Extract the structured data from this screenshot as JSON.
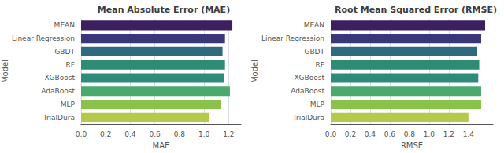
{
  "chart_data": [
    {
      "type": "bar",
      "orientation": "horizontal",
      "title": "Mean Absolute Error (MAE)",
      "categories": [
        "MEAN",
        "Linear Regression",
        "GBDT",
        "RF",
        "XGBoost",
        "AdaBoost",
        "MLP",
        "TrialDura"
      ],
      "values": [
        1.23,
        1.17,
        1.15,
        1.17,
        1.16,
        1.21,
        1.14,
        1.04
      ],
      "colors": [
        "#3b1f5e",
        "#3a3778",
        "#2e6b7e",
        "#2e8b74",
        "#2d8b7a",
        "#4aaa6e",
        "#8bc34a",
        "#b5c94a"
      ],
      "xlabel": "MAE",
      "ylabel": "Model",
      "xlim": [
        0.0,
        1.3
      ],
      "xticks": [
        {
          "value": 0.0,
          "label": "0.0"
        },
        0.2,
        0.4,
        0.6,
        0.8,
        {
          "value": 1.0,
          "label": "1.0"
        },
        1.2
      ],
      "grid": true
    },
    {
      "type": "bar",
      "orientation": "horizontal",
      "title": "Root Mean Squared Error (RMSE)",
      "categories": [
        "MEAN",
        "Linear Regression",
        "GBDT",
        "RF",
        "XGBoost",
        "AdaBoost",
        "MLP",
        "TrialDura"
      ],
      "values": [
        1.57,
        1.53,
        1.49,
        1.51,
        1.5,
        1.53,
        1.53,
        1.4
      ],
      "colors": [
        "#3b1f5e",
        "#3a3778",
        "#2e6b7e",
        "#2e8b74",
        "#2d8b7a",
        "#4aaa6e",
        "#8bc34a",
        "#b5c94a"
      ],
      "xlabel": "RMSE",
      "ylabel": "Model",
      "xlim": [
        0.0,
        1.65
      ],
      "xticks": [
        {
          "value": 0.0,
          "label": "0.0"
        },
        0.2,
        0.4,
        0.6,
        0.8,
        {
          "value": 1.0,
          "label": "1.0"
        },
        1.2,
        1.4
      ],
      "grid": true
    }
  ]
}
